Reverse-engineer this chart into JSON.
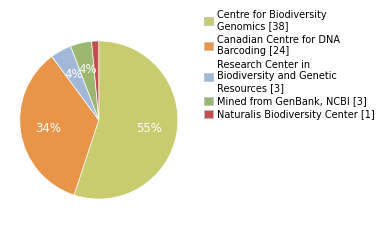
{
  "labels": [
    "Centre for Biodiversity\nGenomics [38]",
    "Canadian Centre for DNA\nBarcoding [24]",
    "Research Center in\nBiodiversity and Genetic\nResources [3]",
    "Mined from GenBank, NCBI [3]",
    "Naturalis Biodiversity Center [1]"
  ],
  "values": [
    38,
    24,
    3,
    3,
    1
  ],
  "colors": [
    "#c8cc6e",
    "#e8954a",
    "#a2b8d8",
    "#9cb870",
    "#c0504d"
  ],
  "background_color": "#ffffff",
  "legend_fontsize": 7.0,
  "autopct_fontsize": 8.5
}
